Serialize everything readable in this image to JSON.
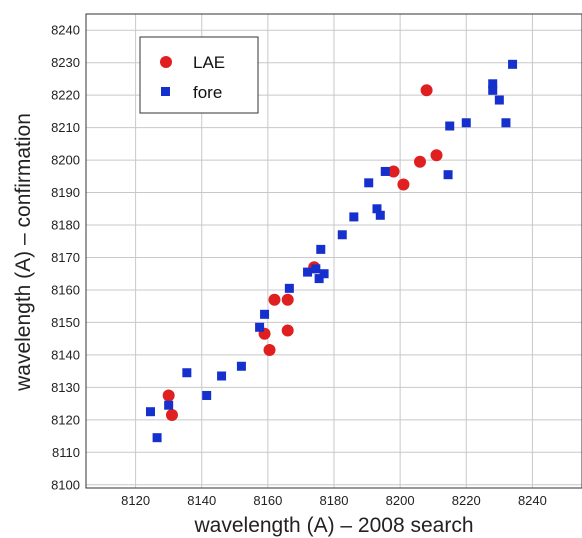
{
  "chart_data": {
    "type": "scatter",
    "xlabel": "wavelength (A) – 2008 search",
    "ylabel": "wavelength (A) – confirmation",
    "xlim": [
      8105,
      8255
    ],
    "ylim": [
      8099,
      8245
    ],
    "xticks": [
      8120,
      8140,
      8160,
      8180,
      8200,
      8220,
      8240
    ],
    "yticks": [
      8100,
      8110,
      8120,
      8130,
      8140,
      8150,
      8160,
      8170,
      8180,
      8190,
      8200,
      8210,
      8220,
      8230,
      8240
    ],
    "grid": true,
    "legend_position": "top-left",
    "series": [
      {
        "name": "LAE",
        "marker": "circle",
        "color": "#e02020",
        "points": [
          [
            8130,
            8127.5
          ],
          [
            8131,
            8121.5
          ],
          [
            8159,
            8146.5
          ],
          [
            8160.5,
            8141.5
          ],
          [
            8162,
            8157
          ],
          [
            8166,
            8157
          ],
          [
            8166,
            8147.5
          ],
          [
            8174,
            8167
          ],
          [
            8198,
            8196.5
          ],
          [
            8201,
            8192.5
          ],
          [
            8206,
            8199.5
          ],
          [
            8208,
            8221.5
          ],
          [
            8211,
            8201.5
          ]
        ]
      },
      {
        "name": "fore",
        "marker": "square",
        "color": "#1530cc",
        "points": [
          [
            8124.5,
            8122.5
          ],
          [
            8126.5,
            8114.5
          ],
          [
            8130,
            8124.5
          ],
          [
            8135.5,
            8134.5
          ],
          [
            8141.5,
            8127.5
          ],
          [
            8146,
            8133.5
          ],
          [
            8152,
            8136.5
          ],
          [
            8157.5,
            8148.5
          ],
          [
            8159,
            8152.5
          ],
          [
            8166.5,
            8160.5
          ],
          [
            8172,
            8165.5
          ],
          [
            8174.5,
            8166.5
          ],
          [
            8175.5,
            8163.5
          ],
          [
            8176,
            8172.5
          ],
          [
            8177,
            8165
          ],
          [
            8182.5,
            8177
          ],
          [
            8186,
            8182.5
          ],
          [
            8190.5,
            8193
          ],
          [
            8193,
            8185
          ],
          [
            8194,
            8183
          ],
          [
            8195.5,
            8196.5
          ],
          [
            8214.5,
            8195.5
          ],
          [
            8215,
            8210.5
          ],
          [
            8220,
            8211.5
          ],
          [
            8228,
            8223.5
          ],
          [
            8228,
            8221.5
          ],
          [
            8230,
            8218.5
          ],
          [
            8232,
            8211.5
          ],
          [
            8234,
            8229.5
          ]
        ]
      }
    ]
  }
}
